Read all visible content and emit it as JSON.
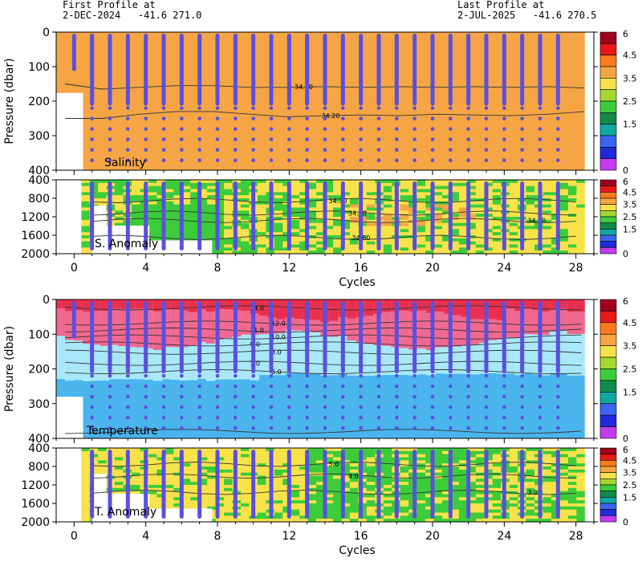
{
  "header": {
    "first_label": "First Profile at",
    "first_value": "2-DEC-2024   -41.6 271.0",
    "last_label": "Last Profile at",
    "last_value": "2-JUL-2025   -41.6 270.5"
  },
  "colorbar_ticks": [
    "6",
    "4.5",
    "3.5",
    "2.5",
    "1.5",
    "0"
  ],
  "chart_data": [
    {
      "type": "heatmap",
      "title": "Salinity",
      "ylabel": "Pressure (dbar)",
      "xlabel": "",
      "xlim": [
        -1,
        29
      ],
      "ylim": [
        400,
        0
      ],
      "yticks": [
        "0",
        "100",
        "200",
        "300",
        "400"
      ],
      "dominant_color": "#f5a544",
      "contours": [
        {
          "label": "34.10",
          "y": [
            150,
            165,
            160,
            155,
            155,
            160,
            160,
            158,
            160,
            158,
            160,
            158,
            160,
            158,
            162
          ]
        },
        {
          "label": "34.20",
          "y": [
            250,
            250,
            238,
            230,
            230,
            238,
            245,
            242,
            240,
            242,
            238,
            240,
            242,
            238,
            230
          ]
        }
      ]
    },
    {
      "type": "heatmap",
      "title": "S. Anomaly",
      "ylabel": "",
      "xlabel": "Cycles",
      "xlim": [
        -1,
        29
      ],
      "ylim": [
        2000,
        400
      ],
      "yticks": [
        "400",
        "800",
        "1200",
        "1600",
        "2000"
      ],
      "xticks": [
        "0",
        "4",
        "8",
        "12",
        "16",
        "20",
        "24",
        "28"
      ],
      "contour_labels": [
        "34.30",
        "34.50",
        "34.40",
        "34.60"
      ]
    },
    {
      "type": "heatmap",
      "title": "Temperature",
      "ylabel": "Pressure (dbar)",
      "xlabel": "",
      "xlim": [
        -1,
        29
      ],
      "ylim": [
        400,
        0
      ],
      "yticks": [
        "0",
        "100",
        "200",
        "300",
        "400"
      ],
      "contour_labels": [
        "14.0",
        "12.0",
        "11.0",
        "10.0",
        "9.0",
        "8.0",
        "7.0",
        "6.0"
      ]
    },
    {
      "type": "heatmap",
      "title": "T. Anomaly",
      "ylabel": "",
      "xlabel": "Cycles",
      "xlim": [
        -1,
        29
      ],
      "ylim": [
        2000,
        400
      ],
      "yticks": [
        "400",
        "800",
        "1200",
        "1600",
        "2000"
      ],
      "xticks": [
        "0",
        "4",
        "8",
        "12",
        "16",
        "20",
        "24",
        "28"
      ],
      "contour_labels": [
        "5.0",
        "4.0",
        "3.0"
      ]
    }
  ],
  "colors": {
    "profile_marker": "#5a4fe0",
    "salinity_fill": "#f5a544",
    "anomaly_yellow": "#f7e24a",
    "anomaly_green": "#3ccc3a",
    "anomaly_orange": "#f5a544",
    "temp_red": "#e8304e",
    "temp_pink": "#f06890",
    "temp_lightblue": "#a8e8f8",
    "temp_blue": "#4ab4ec",
    "colorbar": [
      "#a0001e",
      "#e81818",
      "#ff7a1c",
      "#f5a544",
      "#f7e24a",
      "#a4d830",
      "#3ccc3a",
      "#128a4a",
      "#10a8a0",
      "#3c64f0",
      "#1e2ad8",
      "#c43cf0"
    ]
  }
}
